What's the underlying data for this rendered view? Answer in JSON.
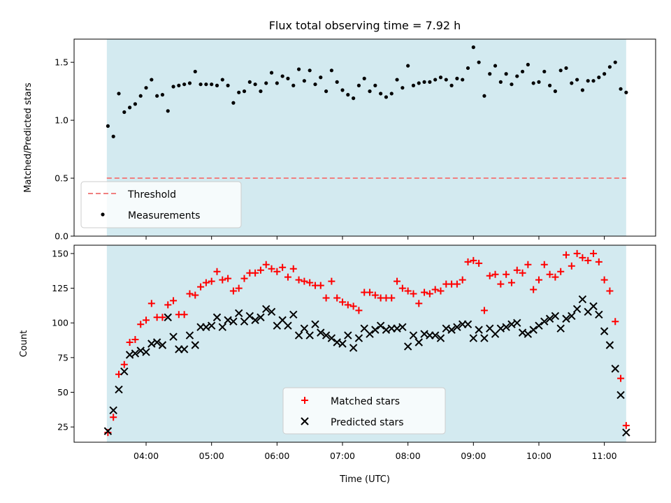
{
  "title": "Flux total observing time = 7.92 h",
  "colors": {
    "band": "#d3eaf0",
    "threshold": "#f08080",
    "matched": "#ff0000",
    "predicted": "#000000",
    "measurements": "#000000"
  },
  "chart_data": [
    {
      "type": "scatter",
      "ylabel": "Matched/Predicted stars",
      "xlabel": "",
      "ylim": [
        0.0,
        1.7
      ],
      "yticks": [
        "0.0",
        "0.5",
        "1.0",
        "1.5"
      ],
      "shaded_x_range": [
        "03:24",
        "11:20"
      ],
      "threshold": {
        "name": "Threshold",
        "value": 0.5
      },
      "legend": {
        "placement": "lower left",
        "entries": [
          "Threshold",
          "Measurements"
        ]
      },
      "series": [
        {
          "name": "Measurements",
          "x": [
            "03:25",
            "03:30",
            "03:35",
            "03:40",
            "03:45",
            "03:50",
            "03:55",
            "04:00",
            "04:05",
            "04:10",
            "04:15",
            "04:20",
            "04:25",
            "04:30",
            "04:35",
            "04:40",
            "04:45",
            "04:50",
            "04:55",
            "05:00",
            "05:05",
            "05:10",
            "05:15",
            "05:20",
            "05:25",
            "05:30",
            "05:35",
            "05:40",
            "05:45",
            "05:50",
            "05:55",
            "06:00",
            "06:05",
            "06:10",
            "06:15",
            "06:20",
            "06:25",
            "06:30",
            "06:35",
            "06:40",
            "06:45",
            "06:50",
            "06:55",
            "07:00",
            "07:05",
            "07:10",
            "07:15",
            "07:20",
            "07:25",
            "07:30",
            "07:35",
            "07:40",
            "07:45",
            "07:50",
            "07:55",
            "08:00",
            "08:05",
            "08:10",
            "08:15",
            "08:20",
            "08:25",
            "08:30",
            "08:35",
            "08:40",
            "08:45",
            "08:50",
            "08:55",
            "09:00",
            "09:05",
            "09:10",
            "09:15",
            "09:20",
            "09:25",
            "09:30",
            "09:35",
            "09:40",
            "09:45",
            "09:50",
            "09:55",
            "10:00",
            "10:05",
            "10:10",
            "10:15",
            "10:20",
            "10:25",
            "10:30",
            "10:35",
            "10:40",
            "10:45",
            "10:50",
            "10:55",
            "11:00",
            "11:05",
            "11:10",
            "11:15",
            "11:20"
          ],
          "y": [
            0.95,
            0.86,
            1.23,
            1.07,
            1.11,
            1.14,
            1.21,
            1.28,
            1.35,
            1.21,
            1.22,
            1.08,
            1.29,
            1.3,
            1.31,
            1.32,
            1.42,
            1.31,
            1.31,
            1.31,
            1.3,
            1.35,
            1.3,
            1.15,
            1.24,
            1.25,
            1.33,
            1.31,
            1.25,
            1.32,
            1.41,
            1.32,
            1.38,
            1.36,
            1.3,
            1.44,
            1.34,
            1.43,
            1.31,
            1.37,
            1.25,
            1.43,
            1.33,
            1.26,
            1.22,
            1.19,
            1.3,
            1.36,
            1.25,
            1.3,
            1.23,
            1.2,
            1.23,
            1.35,
            1.28,
            1.47,
            1.3,
            1.32,
            1.33,
            1.33,
            1.35,
            1.37,
            1.35,
            1.3,
            1.36,
            1.35,
            1.45,
            1.63,
            1.5,
            1.21,
            1.4,
            1.47,
            1.33,
            1.4,
            1.31,
            1.38,
            1.42,
            1.48,
            1.32,
            1.33,
            1.42,
            1.3,
            1.25,
            1.43,
            1.45,
            1.32,
            1.35,
            1.26,
            1.34,
            1.34,
            1.37,
            1.4,
            1.46,
            1.5,
            1.27,
            1.24
          ]
        }
      ]
    },
    {
      "type": "scatter",
      "ylabel": "Count",
      "xlabel": "Time (UTC)",
      "ylim": [
        14,
        156
      ],
      "yticks": [
        "25",
        "50",
        "75",
        "100",
        "125",
        "150"
      ],
      "xticks": [
        "04:00",
        "05:00",
        "06:00",
        "07:00",
        "08:00",
        "09:00",
        "10:00",
        "11:00"
      ],
      "shaded_x_range": [
        "03:24",
        "11:20"
      ],
      "legend": {
        "placement": "lower center",
        "entries": [
          "Matched stars",
          "Predicted stars"
        ]
      },
      "series": [
        {
          "name": "Matched stars",
          "marker": "+",
          "x": [
            "03:25",
            "03:30",
            "03:35",
            "03:40",
            "03:45",
            "03:50",
            "03:55",
            "04:00",
            "04:05",
            "04:10",
            "04:15",
            "04:20",
            "04:25",
            "04:30",
            "04:35",
            "04:40",
            "04:45",
            "04:50",
            "04:55",
            "05:00",
            "05:05",
            "05:10",
            "05:15",
            "05:20",
            "05:25",
            "05:30",
            "05:35",
            "05:40",
            "05:45",
            "05:50",
            "05:55",
            "06:00",
            "06:05",
            "06:10",
            "06:15",
            "06:20",
            "06:25",
            "06:30",
            "06:35",
            "06:40",
            "06:45",
            "06:50",
            "06:55",
            "07:00",
            "07:05",
            "07:10",
            "07:15",
            "07:20",
            "07:25",
            "07:30",
            "07:35",
            "07:40",
            "07:45",
            "07:50",
            "07:55",
            "08:00",
            "08:05",
            "08:10",
            "08:15",
            "08:20",
            "08:25",
            "08:30",
            "08:35",
            "08:40",
            "08:45",
            "08:50",
            "08:55",
            "09:00",
            "09:05",
            "09:10",
            "09:15",
            "09:20",
            "09:25",
            "09:30",
            "09:35",
            "09:40",
            "09:45",
            "09:50",
            "09:55",
            "10:00",
            "10:05",
            "10:10",
            "10:15",
            "10:20",
            "10:25",
            "10:30",
            "10:35",
            "10:40",
            "10:45",
            "10:50",
            "10:55",
            "11:00",
            "11:05",
            "11:10",
            "11:15",
            "11:20"
          ],
          "y": [
            21,
            32,
            63,
            70,
            86,
            88,
            99,
            102,
            114,
            104,
            104,
            113,
            116,
            106,
            106,
            121,
            120,
            126,
            129,
            130,
            137,
            131,
            132,
            123,
            125,
            132,
            136,
            136,
            138,
            142,
            139,
            137,
            140,
            133,
            139,
            131,
            130,
            129,
            127,
            127,
            118,
            130,
            118,
            115,
            113,
            112,
            109,
            122,
            122,
            120,
            118,
            118,
            118,
            130,
            125,
            123,
            121,
            114,
            122,
            121,
            124,
            123,
            128,
            128,
            128,
            131,
            144,
            145,
            143,
            109,
            134,
            135,
            128,
            135,
            129,
            138,
            136,
            142,
            124,
            131,
            142,
            135,
            133,
            137,
            149,
            141,
            150,
            147,
            145,
            150,
            144,
            131,
            123,
            101,
            60,
            26
          ]
        },
        {
          "name": "Predicted stars",
          "marker": "x",
          "x": [
            "03:25",
            "03:30",
            "03:35",
            "03:40",
            "03:45",
            "03:50",
            "03:55",
            "04:00",
            "04:05",
            "04:10",
            "04:15",
            "04:20",
            "04:25",
            "04:30",
            "04:35",
            "04:40",
            "04:45",
            "04:50",
            "04:55",
            "05:00",
            "05:05",
            "05:10",
            "05:15",
            "05:20",
            "05:25",
            "05:30",
            "05:35",
            "05:40",
            "05:45",
            "05:50",
            "05:55",
            "06:00",
            "06:05",
            "06:10",
            "06:15",
            "06:20",
            "06:25",
            "06:30",
            "06:35",
            "06:40",
            "06:45",
            "06:50",
            "06:55",
            "07:00",
            "07:05",
            "07:10",
            "07:15",
            "07:20",
            "07:25",
            "07:30",
            "07:35",
            "07:40",
            "07:45",
            "07:50",
            "07:55",
            "08:00",
            "08:05",
            "08:10",
            "08:15",
            "08:20",
            "08:25",
            "08:30",
            "08:35",
            "08:40",
            "08:45",
            "08:50",
            "08:55",
            "09:00",
            "09:05",
            "09:10",
            "09:15",
            "09:20",
            "09:25",
            "09:30",
            "09:35",
            "09:40",
            "09:45",
            "09:50",
            "09:55",
            "10:00",
            "10:05",
            "10:10",
            "10:15",
            "10:20",
            "10:25",
            "10:30",
            "10:35",
            "10:40",
            "10:45",
            "10:50",
            "10:55",
            "11:00",
            "11:05",
            "11:10",
            "11:15",
            "11:20"
          ],
          "y": [
            22,
            37,
            52,
            65,
            77,
            78,
            80,
            79,
            85,
            86,
            84,
            104,
            90,
            81,
            81,
            91,
            84,
            97,
            97,
            98,
            104,
            97,
            102,
            101,
            107,
            101,
            105,
            102,
            104,
            110,
            108,
            98,
            102,
            98,
            106,
            91,
            96,
            91,
            99,
            93,
            91,
            89,
            86,
            85,
            91,
            82,
            89,
            96,
            92,
            95,
            98,
            95,
            96,
            96,
            97,
            83,
            91,
            86,
            92,
            91,
            91,
            89,
            96,
            95,
            97,
            99,
            99,
            89,
            95,
            89,
            96,
            92,
            96,
            97,
            99,
            100,
            93,
            92,
            95,
            98,
            101,
            103,
            105,
            96,
            103,
            105,
            110,
            117,
            108,
            112,
            106,
            94,
            84,
            67,
            48,
            21
          ]
        }
      ]
    }
  ]
}
